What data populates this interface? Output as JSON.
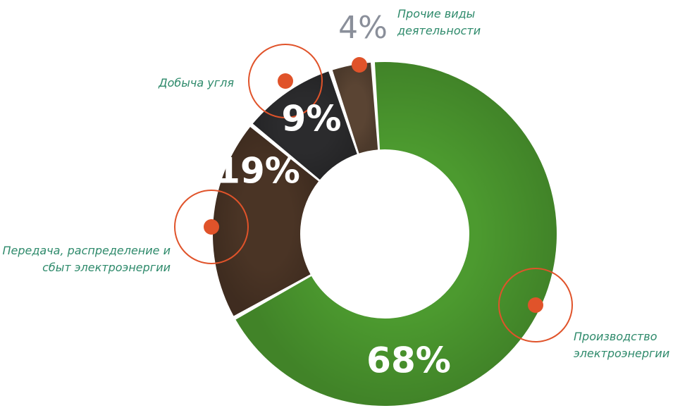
{
  "chart_data": {
    "type": "donut",
    "categories": [
      "Производство электроэнергии",
      "Передача, распределение и сбыт электроэнергии",
      "Добыча угля",
      "Прочие виды деятельности"
    ],
    "values": [
      68,
      19,
      9,
      4
    ],
    "value_labels": [
      "68%",
      "19%",
      "9%",
      "4%"
    ],
    "colors": [
      "#4c9a2f",
      "#4a3425",
      "#2b2b2d",
      "#5a4433"
    ]
  }
}
